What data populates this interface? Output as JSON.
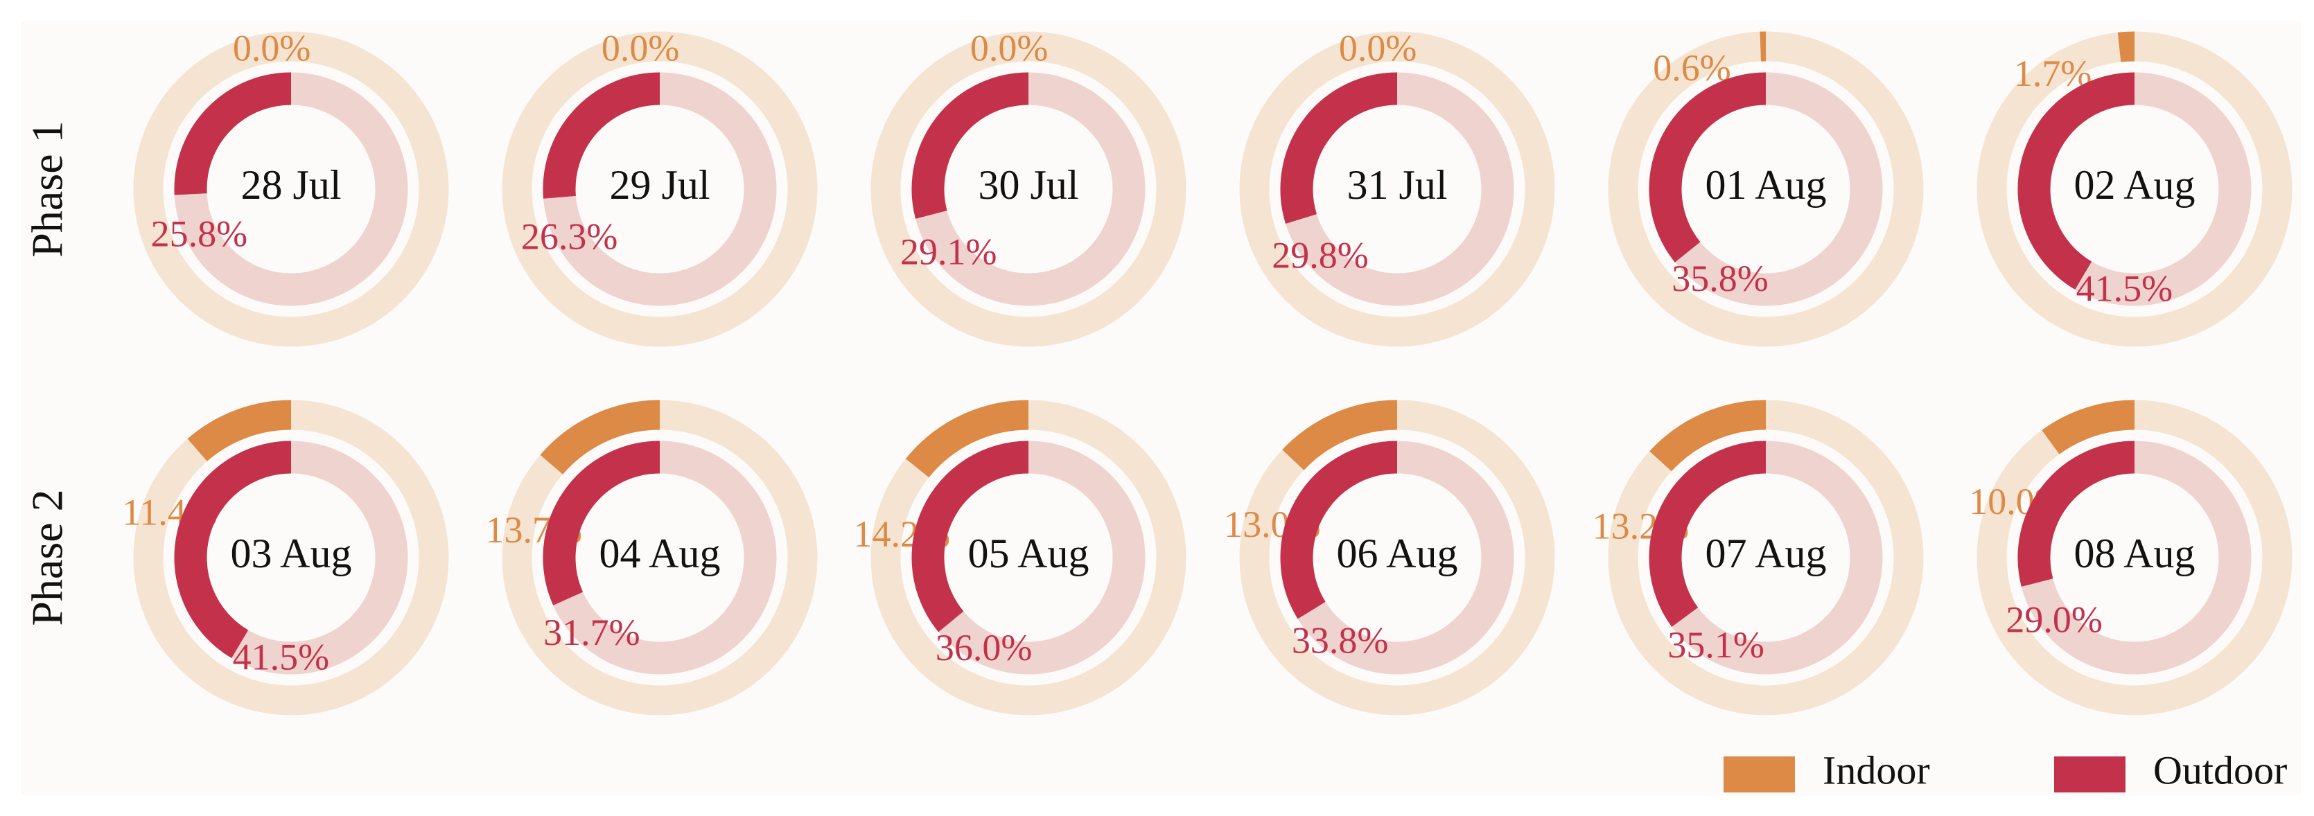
{
  "chart_data": {
    "type": "donut",
    "row_labels": [
      "Phase 1",
      "Phase 2"
    ],
    "categories": [
      "28 Jul",
      "29 Jul",
      "30 Jul",
      "31 Jul",
      "01 Aug",
      "02 Aug",
      "03 Aug",
      "04 Aug",
      "05 Aug",
      "06 Aug",
      "07 Aug",
      "08 Aug"
    ],
    "series": [
      {
        "name": "Indoor",
        "color": "#dc8a45",
        "values": [
          0.0,
          0.0,
          0.0,
          0.0,
          0.6,
          1.7,
          11.4,
          13.7,
          14.2,
          13.0,
          13.2,
          10.0
        ],
        "value_labels": [
          "0.0%",
          "0.0%",
          "0.0%",
          "0.0%",
          "0.6%",
          "1.7%",
          "11.4%",
          "13.7%",
          "14.2%",
          "13.0%",
          "13.2%",
          "10.0%"
        ]
      },
      {
        "name": "Outdoor",
        "color": "#c4314b",
        "values": [
          25.8,
          26.3,
          29.1,
          29.8,
          35.8,
          41.5,
          41.5,
          31.7,
          36.0,
          33.8,
          35.1,
          29.0
        ],
        "value_labels": [
          "25.8%",
          "26.3%",
          "29.1%",
          "29.8%",
          "35.8%",
          "41.5%",
          "41.5%",
          "31.7%",
          "36.0%",
          "33.8%",
          "35.1%",
          "29.0%"
        ]
      }
    ],
    "legend": "bottom-right"
  }
}
